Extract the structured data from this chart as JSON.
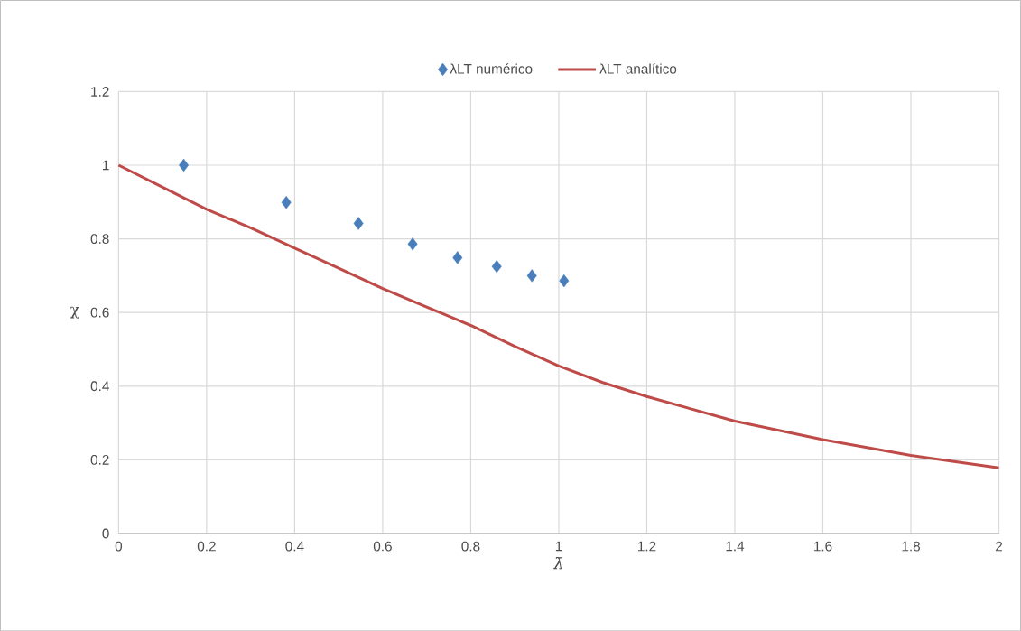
{
  "chart_data": {
    "type": "scatter",
    "xlabel": "λ̄",
    "ylabel": "χ",
    "xlim": [
      0,
      2
    ],
    "xticks": [
      0,
      0.2,
      0.4,
      0.6,
      0.8,
      1,
      1.2,
      1.4,
      1.6,
      1.8,
      2
    ],
    "ylim": [
      0,
      1.2
    ],
    "yticks": [
      0,
      0.2,
      0.4,
      0.6,
      0.8,
      1,
      1.2
    ],
    "grid": true,
    "legend": "top",
    "series": [
      {
        "name": "λLT numérico",
        "type": "scatter",
        "marker": "diamond",
        "color": "#4a7ebb",
        "x": [
          0.148,
          0.381,
          0.545,
          0.668,
          0.77,
          0.859,
          0.939,
          1.012
        ],
        "values": [
          1.0,
          0.899,
          0.842,
          0.786,
          0.749,
          0.725,
          0.7,
          0.686
        ]
      },
      {
        "name": "λLT analítico",
        "type": "line",
        "marker": "none",
        "line_style": "solid",
        "color": "#be4b48",
        "x": [
          0,
          0.1,
          0.2,
          0.3,
          0.4,
          0.5,
          0.6,
          0.7,
          0.8,
          0.9,
          1.0,
          1.1,
          1.2,
          1.4,
          1.6,
          1.8,
          2.0
        ],
        "values": [
          1.0,
          0.94,
          0.88,
          0.83,
          0.775,
          0.72,
          0.665,
          0.615,
          0.565,
          0.508,
          0.455,
          0.41,
          0.372,
          0.305,
          0.255,
          0.212,
          0.178
        ]
      }
    ]
  }
}
